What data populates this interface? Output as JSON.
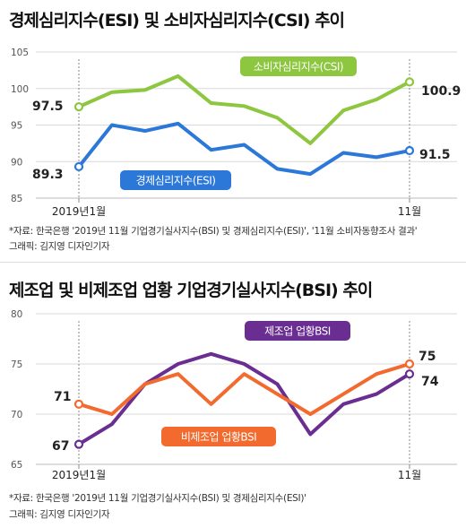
{
  "chart_data": [
    {
      "type": "line",
      "title": "경제심리지수(ESI) 및 소비자심리지수(CSI) 추이",
      "ylim": [
        85,
        105
      ],
      "yticks": [
        85,
        90,
        95,
        100,
        105
      ],
      "x_labels": [
        "2019년1월",
        "11월"
      ],
      "grid": true,
      "series": [
        {
          "name": "소비자심리지수(CSI)",
          "color": "#8DC63F",
          "values": [
            97.5,
            99.5,
            99.8,
            101.7,
            98.0,
            97.6,
            96.0,
            92.5,
            97.0,
            98.5,
            100.9
          ],
          "start_label": "97.5",
          "end_label": "100.9"
        },
        {
          "name": "경제심리지수(ESI)",
          "color": "#2B78D9",
          "values": [
            89.3,
            95.0,
            94.2,
            95.2,
            91.6,
            92.3,
            89.0,
            88.3,
            91.2,
            90.6,
            91.5
          ],
          "start_label": "89.3",
          "end_label": "91.5"
        }
      ],
      "source": "*자료: 한국은행 '2019년 11월 기업경기실사지수(BSI) 및 경제심리지수(ESI)', '11월 소비자동향조사 결과'",
      "credit": "그래픽: 김지영 디자인기자"
    },
    {
      "type": "line",
      "title": "제조업 및 비제조업 업황 기업경기실사지수(BSI) 추이",
      "ylim": [
        65,
        80
      ],
      "yticks": [
        65,
        70,
        75,
        80
      ],
      "x_labels": [
        "2019년1월",
        "11월"
      ],
      "grid": true,
      "series": [
        {
          "name": "제조업 업황BSI",
          "color": "#6A2D91",
          "values": [
            67,
            69,
            73,
            75,
            76,
            75,
            73,
            68,
            71,
            72,
            74
          ],
          "start_label": "67",
          "end_label": "74"
        },
        {
          "name": "비제조업 업황BSI",
          "color": "#F26A2E",
          "values": [
            71,
            70,
            73,
            74,
            71,
            74,
            72,
            70,
            72,
            74,
            75
          ],
          "start_label": "71",
          "end_label": "75"
        }
      ],
      "source": "*자료: 한국은행 '2019년 11월 기업경기실사지수(BSI) 및 경제심리지수(ESI)'",
      "credit": "그래픽: 김지영 디자인기자"
    }
  ]
}
